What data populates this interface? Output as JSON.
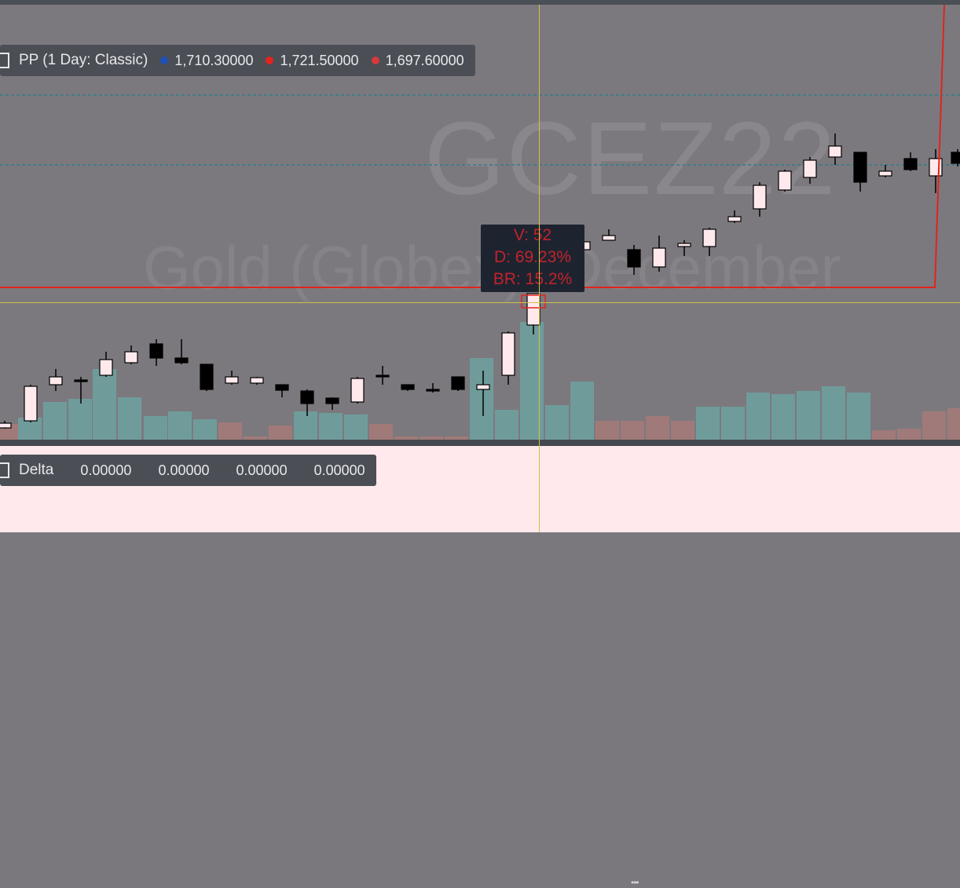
{
  "symbol": "GCEZ22",
  "instrument_name": "Gold (Globex): December",
  "pivot_legend": {
    "label": "PP (1 Day: Classic)",
    "values": [
      {
        "value": "1,710.30000",
        "color": "#1f4fb8"
      },
      {
        "value": "1,721.50000",
        "color": "#e0241e"
      },
      {
        "value": "1,697.60000",
        "color": "#d8393a"
      }
    ]
  },
  "tooltip": {
    "volume": "V: 52",
    "delta": "D: 69.23%",
    "br": "BR: 15.2%"
  },
  "delta_legend": {
    "label": "Delta",
    "values": [
      "0.00000",
      "0.00000",
      "0.00000",
      "0.00000"
    ]
  },
  "colors": {
    "background": "#7c797e",
    "bull_candle": "#ffe9ec",
    "bear_candle": "#000000",
    "volume_up": "#6f9c9b",
    "volume_down": "#a07a78",
    "crosshair": "#cfc24a",
    "pivot_line": "#2d7f8a",
    "range_box": "#e0241e",
    "delta_pane": "#ffe9ec"
  }
}
